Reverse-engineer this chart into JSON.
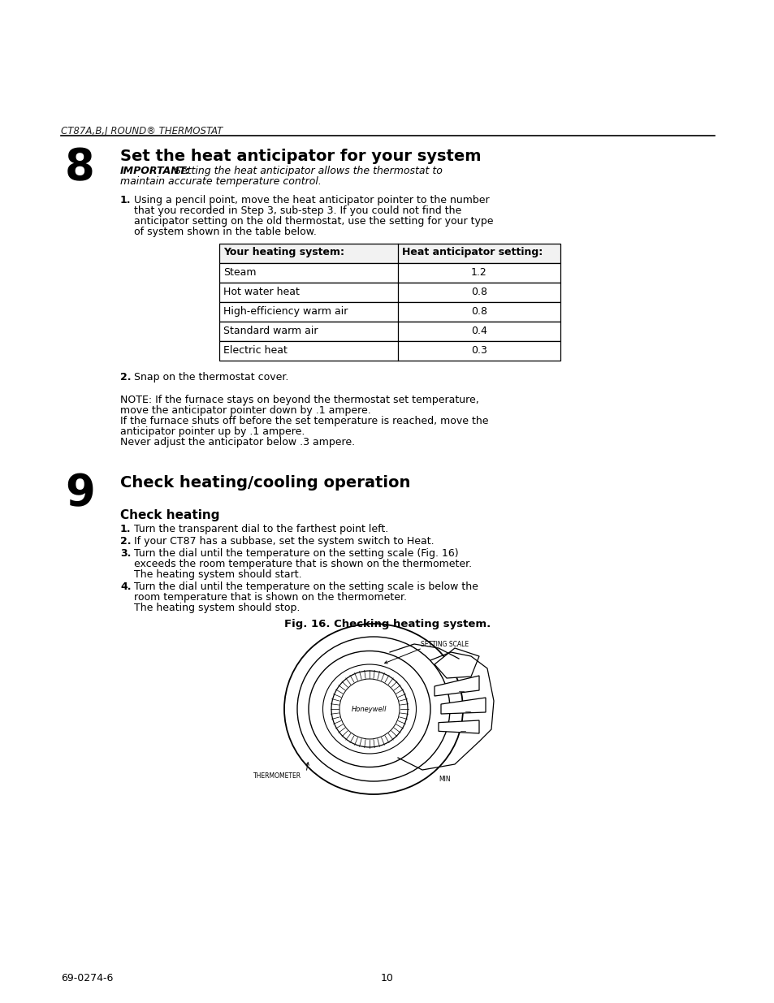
{
  "background_color": "#ffffff",
  "header_text": "CT87A,B,J ROUND® THERMOSTAT",
  "section8_number": "8",
  "section8_title": "Set the heat anticipator for your system",
  "section8_important_bold": "IMPORTANT:",
  "section8_important_rest": " Setting the heat anticipator allows the thermostat to",
  "section8_important_line2": "maintain accurate temperature control.",
  "section8_step1_num": "1.",
  "section8_step1_lines": [
    "Using a pencil point, move the heat anticipator pointer to the number",
    "that you recorded in Step 3, sub-step 3. If you could not find the",
    "anticipator setting on the old thermostat, use the setting for your type",
    "of system shown in the table below."
  ],
  "table_col1_header": "Your heating system:",
  "table_col2_header": "Heat anticipator setting:",
  "table_rows": [
    [
      "Steam",
      "1.2"
    ],
    [
      "Hot water heat",
      "0.8"
    ],
    [
      "High-efficiency warm air",
      "0.8"
    ],
    [
      "Standard warm air",
      "0.4"
    ],
    [
      "Electric heat",
      "0.3"
    ]
  ],
  "section8_step2_num": "2.",
  "section8_step2_text": "Snap on the thermostat cover.",
  "note_lines": [
    "NOTE: If the furnace stays on beyond the thermostat set temperature,",
    "move the anticipator pointer down by .1 ampere.",
    "If the furnace shuts off before the set temperature is reached, move the",
    "anticipator pointer up by .1 ampere.",
    "Never adjust the anticipator below .3 ampere."
  ],
  "section9_number": "9",
  "section9_title": "Check heating/cooling operation",
  "subsection_title": "Check heating",
  "check_steps": [
    {
      "num": "1.",
      "lines": [
        "Turn the transparent dial to the farthest point left."
      ]
    },
    {
      "num": "2.",
      "lines": [
        "If your CT87 has a subbase, set the system switch to Heat."
      ]
    },
    {
      "num": "3.",
      "lines": [
        "Turn the dial until the temperature on the setting scale (Fig. 16)",
        "exceeds the room temperature that is shown on the thermometer.",
        "The heating system should start."
      ]
    },
    {
      "num": "4.",
      "lines": [
        "Turn the dial until the temperature on the setting scale is below the",
        "room temperature that is shown on the thermometer.",
        "The heating system should stop."
      ]
    }
  ],
  "fig16_caption": "Fig. 16. Checking heating system.",
  "setting_scale_label": "SETTING SCALE",
  "thermometer_label": "THERMOMETER",
  "min_label": "MIN",
  "honeywell_text": "Honeywell",
  "footer_left": "69-0274-6",
  "footer_center": "10"
}
